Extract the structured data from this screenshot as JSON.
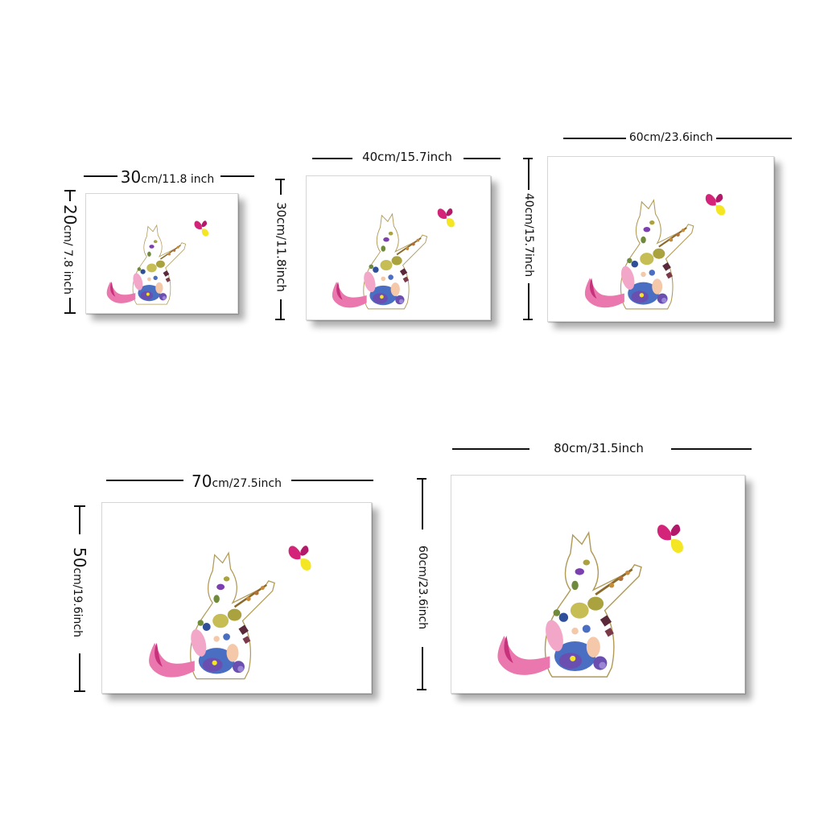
{
  "sizes": [
    {
      "width_cm": "30",
      "width_rest": "cm/11.8 inch",
      "height_cm": "20",
      "height_rest": "cm/ 7.8 inch"
    },
    {
      "width_label": "40cm/15.7inch",
      "height_label": "30cm/11.8inch"
    },
    {
      "width_label": "60cm/23.6inch",
      "height_label": "40cm/15.7inch"
    },
    {
      "width_cm": "70",
      "width_rest": "cm/27.5inch",
      "height_cm": "50",
      "height_rest": "cm/19.6inch"
    },
    {
      "width_label": "80cm/31.5inch",
      "height_label": "60cm/23.6inch"
    }
  ],
  "colors": {
    "pink": "#e0569a",
    "petal_pink": "#f2a6c8",
    "violet": "#6a4fb0",
    "blue": "#4a6fc2",
    "olive": "#a9a23e",
    "plum": "#5a2a3a",
    "yellow": "#f4e623",
    "magenta": "#d4247a",
    "leaf": "#6f8a3a"
  },
  "artwork_icon": "floral-cat-with-butterfly"
}
